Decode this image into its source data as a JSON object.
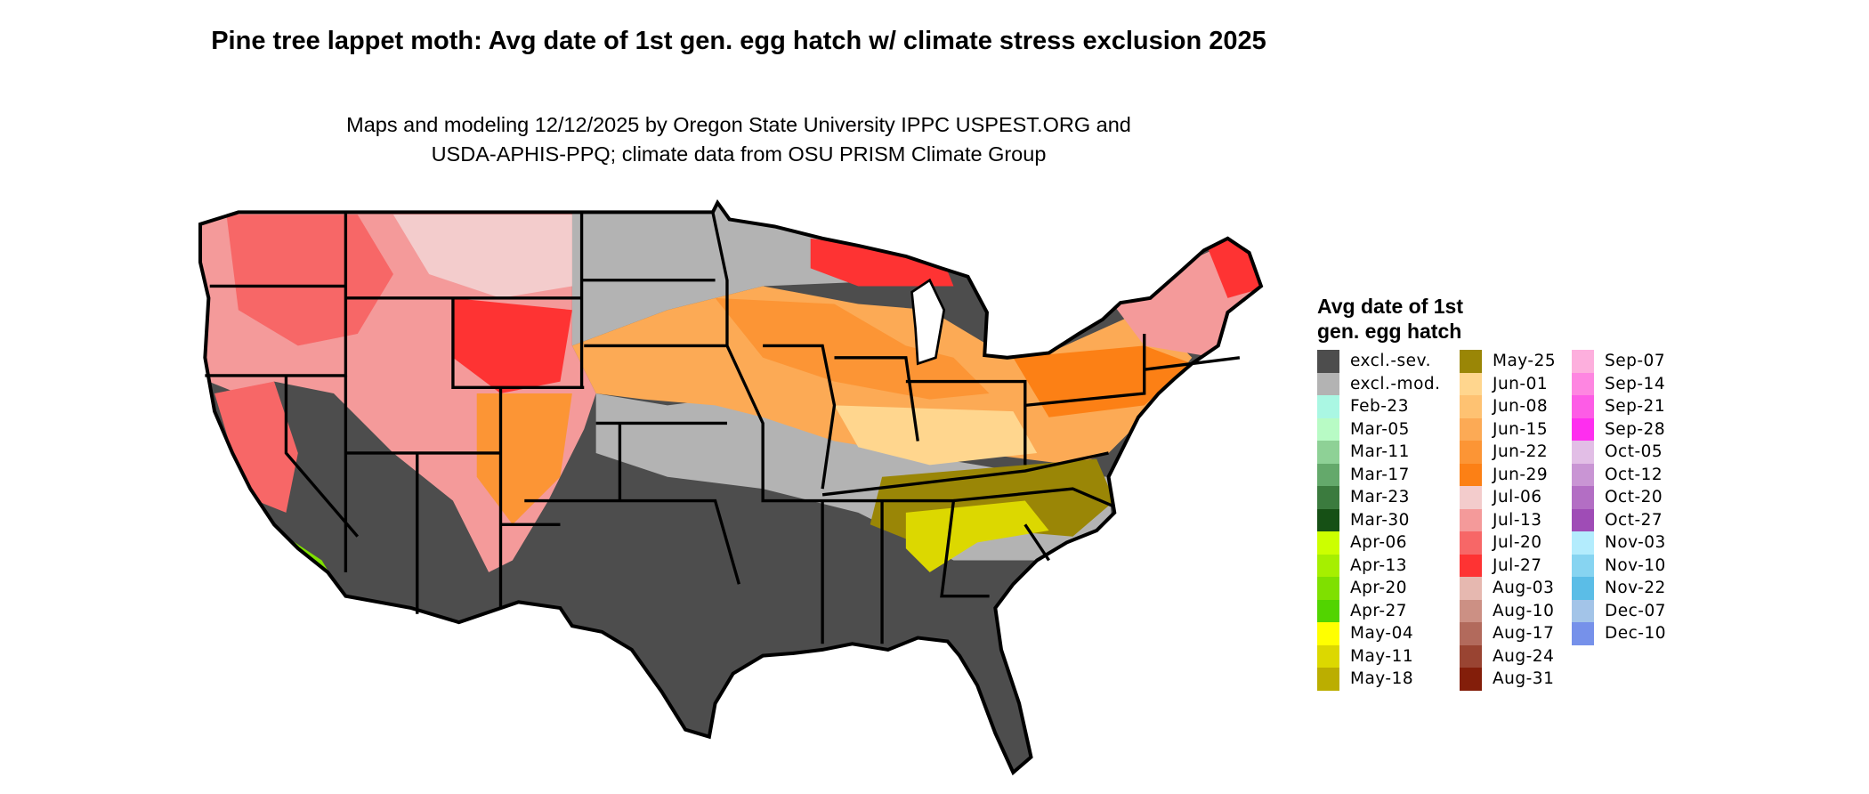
{
  "title": "Pine tree lappet moth: Avg date of 1st gen. egg hatch w/ climate stress exclusion 2025",
  "subtitle_line1": "Maps and modeling 12/12/2025 by Oregon State University IPPC USPEST.ORG and",
  "subtitle_line2": "USDA-APHIS-PPQ; climate data from OSU PRISM Climate Group",
  "legend": {
    "title": "Avg date of 1st\ngen. egg hatch",
    "columns": [
      [
        {
          "label": "excl.-sev.",
          "color": "#4d4d4d"
        },
        {
          "label": "excl.-mod.",
          "color": "#b3b3b3"
        },
        {
          "label": "Feb-23",
          "color": "#aaf7e3"
        },
        {
          "label": "Mar-05",
          "color": "#b8fbc5"
        },
        {
          "label": "Mar-11",
          "color": "#8ed196"
        },
        {
          "label": "Mar-17",
          "color": "#64a96b"
        },
        {
          "label": "Mar-23",
          "color": "#3b7b3e"
        },
        {
          "label": "Mar-30",
          "color": "#165015"
        },
        {
          "label": "Apr-06",
          "color": "#ccff00"
        },
        {
          "label": "Apr-13",
          "color": "#a6ef00"
        },
        {
          "label": "Apr-20",
          "color": "#7fe000"
        },
        {
          "label": "Apr-27",
          "color": "#52d400"
        },
        {
          "label": "May-04",
          "color": "#ffff00"
        },
        {
          "label": "May-11",
          "color": "#dcd800"
        },
        {
          "label": "May-18",
          "color": "#bbae00"
        }
      ],
      [
        {
          "label": "May-25",
          "color": "#9a8606"
        },
        {
          "label": "Jun-01",
          "color": "#ffd68e"
        },
        {
          "label": "Jun-08",
          "color": "#fec272"
        },
        {
          "label": "Jun-15",
          "color": "#fcaa55"
        },
        {
          "label": "Jun-22",
          "color": "#fc9535"
        },
        {
          "label": "Jun-29",
          "color": "#fc8015"
        },
        {
          "label": "Jul-06",
          "color": "#f3cccc"
        },
        {
          "label": "Jul-13",
          "color": "#f49a9a"
        },
        {
          "label": "Jul-20",
          "color": "#f76767"
        },
        {
          "label": "Jul-27",
          "color": "#fe3333"
        },
        {
          "label": "Aug-03",
          "color": "#e6b8b0"
        },
        {
          "label": "Aug-10",
          "color": "#cc9084"
        },
        {
          "label": "Aug-17",
          "color": "#b26a5c"
        },
        {
          "label": "Aug-24",
          "color": "#994432"
        },
        {
          "label": "Aug-31",
          "color": "#831e0a"
        }
      ],
      [
        {
          "label": "Sep-07",
          "color": "#fdafdd"
        },
        {
          "label": "Sep-14",
          "color": "#fe86e1"
        },
        {
          "label": "Sep-21",
          "color": "#fd5ce6"
        },
        {
          "label": "Sep-28",
          "color": "#fe2eef"
        },
        {
          "label": "Oct-05",
          "color": "#e2bee6"
        },
        {
          "label": "Oct-12",
          "color": "#c995d4"
        },
        {
          "label": "Oct-20",
          "color": "#b36ec4"
        },
        {
          "label": "Oct-27",
          "color": "#9f4cb6"
        },
        {
          "label": "Nov-03",
          "color": "#b3ecfd"
        },
        {
          "label": "Nov-10",
          "color": "#87d4f1"
        },
        {
          "label": "Nov-22",
          "color": "#5bbde7"
        },
        {
          "label": "Dec-07",
          "color": "#a3c4e8"
        },
        {
          "label": "Dec-10",
          "color": "#7691ea"
        }
      ]
    ]
  }
}
